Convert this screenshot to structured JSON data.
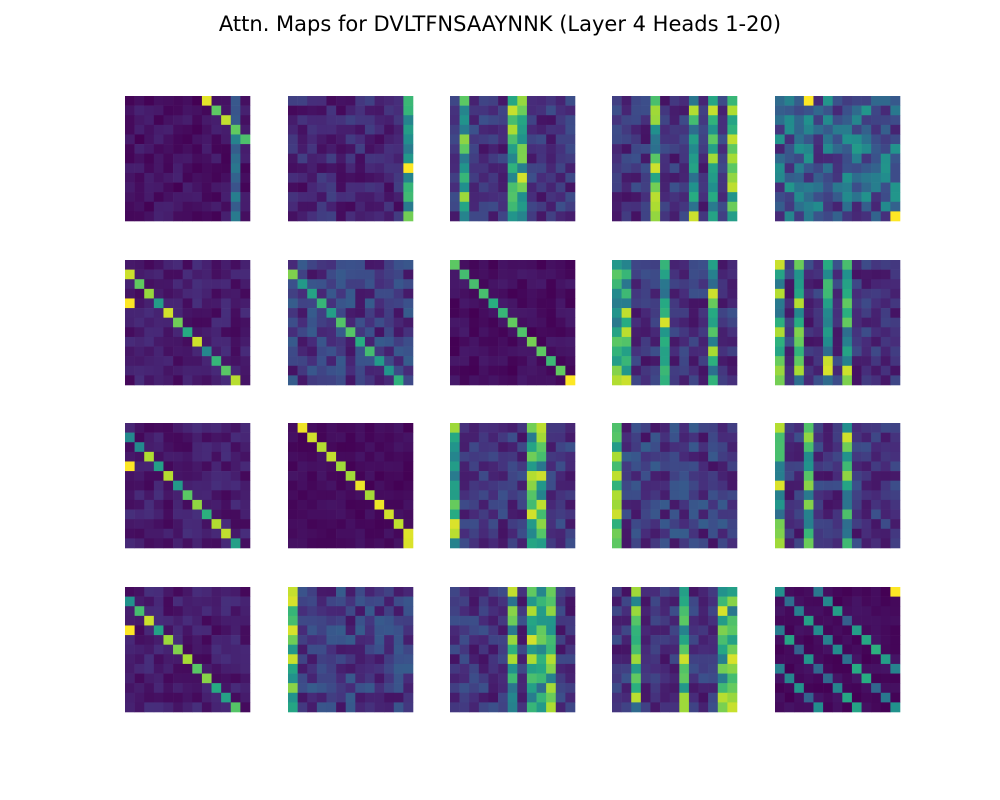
{
  "title": "Attn. Maps for DVLTFNSAAYNNK (Layer 4 Heads 1-20)",
  "palette": "viridis",
  "chart_data": {
    "type": "heatmap",
    "title": "Attn. Maps for DVLTFNSAAYNNK (Layer 4 Heads 1-20)",
    "sequence": "DVLTFNSAAYNNK",
    "layer": 4,
    "heads": "1-20",
    "matrix_size": 13,
    "grid": {
      "rows": 4,
      "cols": 5
    },
    "axes_visible": false,
    "value_range": [
      0,
      1
    ],
    "panels": [
      {
        "head": 1,
        "pattern": "upper-right-offdiagonal"
      },
      {
        "head": 2,
        "pattern": "last-column-focus"
      },
      {
        "head": 3,
        "pattern": "vertical-stripes"
      },
      {
        "head": 4,
        "pattern": "vertical-stripes"
      },
      {
        "head": 5,
        "pattern": "diffuse"
      },
      {
        "head": 6,
        "pattern": "lower-offdiagonal"
      },
      {
        "head": 7,
        "pattern": "diffuse-diagonal"
      },
      {
        "head": 8,
        "pattern": "diagonal"
      },
      {
        "head": 9,
        "pattern": "vertical-stripes"
      },
      {
        "head": 10,
        "pattern": "vertical-stripes"
      },
      {
        "head": 11,
        "pattern": "lower-offdiagonal"
      },
      {
        "head": 12,
        "pattern": "upper-offdiagonal"
      },
      {
        "head": 13,
        "pattern": "vertical-stripes"
      },
      {
        "head": 14,
        "pattern": "first-column-focus"
      },
      {
        "head": 15,
        "pattern": "vertical-stripes"
      },
      {
        "head": 16,
        "pattern": "lower-offdiagonal"
      },
      {
        "head": 17,
        "pattern": "first-column-focus"
      },
      {
        "head": 18,
        "pattern": "vertical-stripes"
      },
      {
        "head": 19,
        "pattern": "vertical-stripes"
      },
      {
        "head": 20,
        "pattern": "multi-diagonal"
      }
    ]
  }
}
